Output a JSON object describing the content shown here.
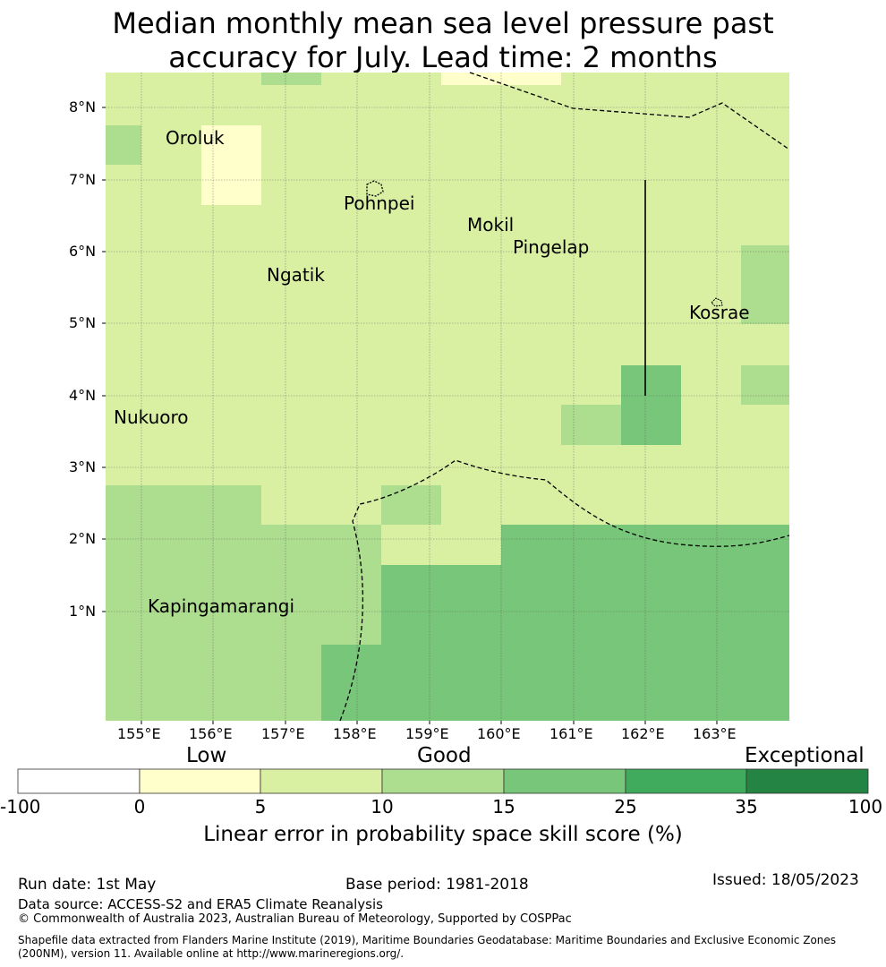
{
  "title": {
    "line1": "Median monthly mean sea level pressure past",
    "line2": "accuracy for July. Lead time: 2 months"
  },
  "map": {
    "x_ticks": [
      "155°E",
      "156°E",
      "157°E",
      "158°E",
      "159°E",
      "160°E",
      "161°E",
      "162°E",
      "163°E"
    ],
    "y_ticks": [
      "8°N",
      "7°N",
      "6°N",
      "5°N",
      "4°N",
      "3°N",
      "2°N",
      "1°N"
    ],
    "places": [
      "Oroluk",
      "Pohnpei",
      "Mokil",
      "Pingelap",
      "Ngatik",
      "Kosrae",
      "Nukuoro",
      "Kapingamarangi"
    ]
  },
  "colorbar": {
    "categories": [
      "Low",
      "Good",
      "Exceptional"
    ],
    "tick_labels": [
      "-100",
      "0",
      "5",
      "10",
      "15",
      "25",
      "35",
      "100"
    ],
    "colors": [
      "#ffffff",
      "#ffffcc",
      "#d9f0a3",
      "#addd8e",
      "#78c679",
      "#41ab5d",
      "#238443"
    ],
    "label": "Linear error in probability space skill score (%)"
  },
  "footer": {
    "run_date": "Run date: 1st May",
    "base_period": "Base period: 1981-2018",
    "issued": "Issued: 18/05/2023",
    "data_source": "Data source: ACCESS-S2 and ERA5 Climate Reanalysis",
    "copyright": "© Commonwealth of Australia 2023, Australian Bureau of Meteorology, Supported by COSPPac",
    "shapefile_line1": "Shapefile data extracted from Flanders Marine Institute (2019), Maritime Boundaries Geodatabase: Maritime Boundaries and Exclusive Economic Zones",
    "shapefile_line2": "(200NM), version 11. Available online at http://www.marineregions.org/."
  }
}
